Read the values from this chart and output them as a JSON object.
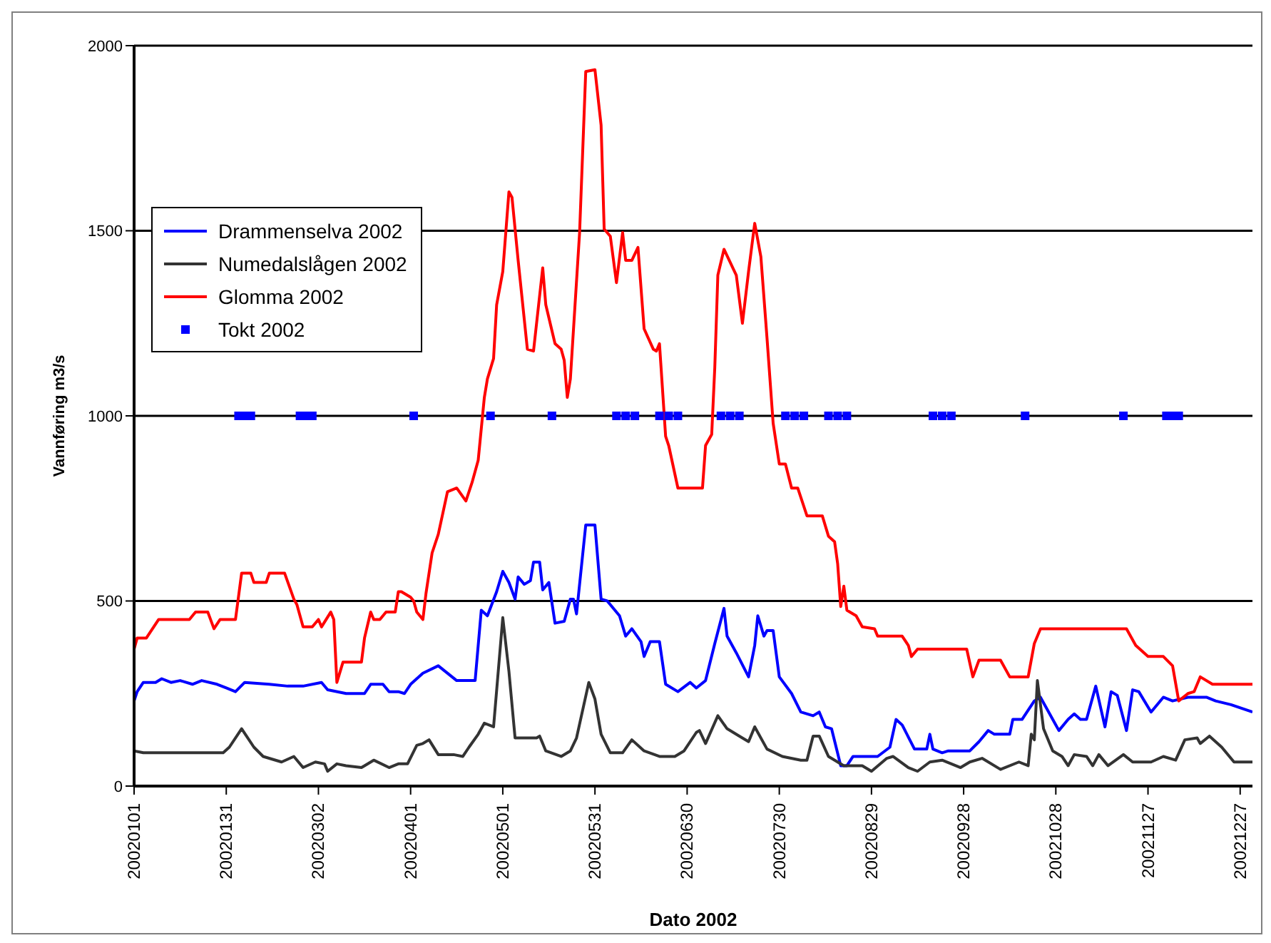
{
  "chart_data": {
    "type": "line",
    "xlabel": "Dato 2002",
    "ylabel": "Vannføring m3/s",
    "xlim": [
      "2002-01-01",
      "2002-12-31"
    ],
    "xticks": [
      {
        "value": "2002-01-01",
        "label": "20020101"
      },
      {
        "value": "2002-01-31",
        "label": "20020131"
      },
      {
        "value": "2002-03-02",
        "label": "20020302"
      },
      {
        "value": "2002-04-01",
        "label": "20020401"
      },
      {
        "value": "2002-05-01",
        "label": "20020501"
      },
      {
        "value": "2002-05-31",
        "label": "20020531"
      },
      {
        "value": "2002-06-30",
        "label": "20020630"
      },
      {
        "value": "2002-07-30",
        "label": "20020730"
      },
      {
        "value": "2002-08-29",
        "label": "20020829"
      },
      {
        "value": "2002-09-28",
        "label": "20020928"
      },
      {
        "value": "2002-10-28",
        "label": "20021028"
      },
      {
        "value": "2002-11-27",
        "label": "20021127"
      },
      {
        "value": "2002-12-27",
        "label": "20021227"
      }
    ],
    "ylim": [
      0,
      2000
    ],
    "yticks": [
      0,
      500,
      1000,
      1500,
      2000
    ],
    "grid": "y",
    "legend": "top left",
    "line_style": "solid",
    "marker": "none",
    "series": [
      {
        "name": "Drammenselva 2002",
        "color": "#0000ff",
        "x": [
          "2002-01-01",
          "2002-01-02",
          "2002-01-04",
          "2002-01-08",
          "2002-01-10",
          "2002-01-13",
          "2002-01-16",
          "2002-01-20",
          "2002-01-23",
          "2002-01-28",
          "2002-01-31",
          "2002-02-03",
          "2002-02-06",
          "2002-02-14",
          "2002-02-20",
          "2002-02-25",
          "2002-03-03",
          "2002-03-05",
          "2002-03-11",
          "2002-03-17",
          "2002-03-19",
          "2002-03-23",
          "2002-03-25",
          "2002-03-28",
          "2002-03-30",
          "2002-04-01",
          "2002-04-05",
          "2002-04-10",
          "2002-04-16",
          "2002-04-22",
          "2002-04-24",
          "2002-04-26",
          "2002-04-29",
          "2002-05-01",
          "2002-05-03",
          "2002-05-05",
          "2002-05-06",
          "2002-05-08",
          "2002-05-10",
          "2002-05-11",
          "2002-05-13",
          "2002-05-14",
          "2002-05-16",
          "2002-05-18",
          "2002-05-21",
          "2002-05-23",
          "2002-05-24",
          "2002-05-25",
          "2002-05-28",
          "2002-05-31",
          "2002-06-02",
          "2002-06-04",
          "2002-06-08",
          "2002-06-10",
          "2002-06-12",
          "2002-06-15",
          "2002-06-16",
          "2002-06-18",
          "2002-06-21",
          "2002-06-23",
          "2002-06-27",
          "2002-07-01",
          "2002-07-03",
          "2002-07-06",
          "2002-07-09",
          "2002-07-12",
          "2002-07-13",
          "2002-07-16",
          "2002-07-20",
          "2002-07-22",
          "2002-07-23",
          "2002-07-25",
          "2002-07-26",
          "2002-07-28",
          "2002-07-30",
          "2002-08-03",
          "2002-08-06",
          "2002-08-10",
          "2002-08-12",
          "2002-08-14",
          "2002-08-16",
          "2002-08-19",
          "2002-08-21",
          "2002-08-23",
          "2002-08-31",
          "2002-09-04",
          "2002-09-06",
          "2002-09-08",
          "2002-09-12",
          "2002-09-16",
          "2002-09-17",
          "2002-09-18",
          "2002-09-21",
          "2002-09-23",
          "2002-09-25",
          "2002-09-30",
          "2002-10-03",
          "2002-10-06",
          "2002-10-08",
          "2002-10-13",
          "2002-10-14",
          "2002-10-17",
          "2002-10-21",
          "2002-10-23",
          "2002-10-25",
          "2002-10-29",
          "2002-11-01",
          "2002-11-03",
          "2002-11-05",
          "2002-11-07",
          "2002-11-10",
          "2002-11-13",
          "2002-11-15",
          "2002-11-17",
          "2002-11-20",
          "2002-11-22",
          "2002-11-24",
          "2002-11-28",
          "2002-12-02",
          "2002-12-05",
          "2002-12-10",
          "2002-12-16",
          "2002-12-19",
          "2002-12-24",
          "2002-12-31"
        ],
        "values": [
          230,
          255,
          280,
          280,
          290,
          280,
          285,
          275,
          285,
          275,
          265,
          255,
          280,
          275,
          270,
          270,
          280,
          260,
          250,
          250,
          275,
          275,
          255,
          255,
          250,
          275,
          305,
          325,
          285,
          285,
          475,
          460,
          525,
          580,
          550,
          505,
          565,
          545,
          555,
          605,
          605,
          530,
          550,
          440,
          445,
          505,
          505,
          465,
          705,
          705,
          505,
          500,
          460,
          405,
          425,
          390,
          350,
          390,
          390,
          275,
          255,
          280,
          265,
          285,
          385,
          480,
          405,
          360,
          295,
          380,
          460,
          405,
          420,
          420,
          295,
          250,
          200,
          190,
          200,
          160,
          155,
          55,
          55,
          80,
          80,
          105,
          180,
          165,
          100,
          100,
          140,
          100,
          90,
          95,
          95,
          95,
          120,
          150,
          140,
          140,
          180,
          180,
          230,
          240,
          210,
          150,
          180,
          195,
          180,
          180,
          270,
          160,
          255,
          245,
          150,
          260,
          255,
          200,
          240,
          230,
          240,
          240,
          230,
          220,
          200
        ]
      },
      {
        "name": "Numedalslågen 2002",
        "color": "#333333",
        "x": [
          "2002-01-01",
          "2002-01-04",
          "2002-01-30",
          "2002-02-01",
          "2002-02-05",
          "2002-02-09",
          "2002-02-12",
          "2002-02-18",
          "2002-02-22",
          "2002-02-25",
          "2002-03-01",
          "2002-03-04",
          "2002-03-05",
          "2002-03-08",
          "2002-03-11",
          "2002-03-16",
          "2002-03-20",
          "2002-03-25",
          "2002-03-28",
          "2002-03-31",
          "2002-04-03",
          "2002-04-05",
          "2002-04-07",
          "2002-04-10",
          "2002-04-15",
          "2002-04-18",
          "2002-04-20",
          "2002-04-23",
          "2002-04-25",
          "2002-04-28",
          "2002-05-01",
          "2002-05-03",
          "2002-05-05",
          "2002-05-12",
          "2002-05-13",
          "2002-05-15",
          "2002-05-20",
          "2002-05-23",
          "2002-05-25",
          "2002-05-29",
          "2002-05-31",
          "2002-06-02",
          "2002-06-05",
          "2002-06-09",
          "2002-06-12",
          "2002-06-16",
          "2002-06-21",
          "2002-06-26",
          "2002-06-29",
          "2002-07-03",
          "2002-07-04",
          "2002-07-06",
          "2002-07-10",
          "2002-07-13",
          "2002-07-17",
          "2002-07-20",
          "2002-07-22",
          "2002-07-26",
          "2002-07-31",
          "2002-08-06",
          "2002-08-08",
          "2002-08-10",
          "2002-08-12",
          "2002-08-15",
          "2002-08-20",
          "2002-08-26",
          "2002-08-29",
          "2002-09-03",
          "2002-09-05",
          "2002-09-10",
          "2002-09-13",
          "2002-09-17",
          "2002-09-21",
          "2002-09-27",
          "2002-09-30",
          "2002-10-04",
          "2002-10-10",
          "2002-10-16",
          "2002-10-19",
          "2002-10-20",
          "2002-10-21",
          "2002-10-22",
          "2002-10-24",
          "2002-10-27",
          "2002-10-30",
          "2002-11-01",
          "2002-11-03",
          "2002-11-07",
          "2002-11-09",
          "2002-11-11",
          "2002-11-14",
          "2002-11-19",
          "2002-11-22",
          "2002-11-28",
          "2002-12-02",
          "2002-12-06",
          "2002-12-09",
          "2002-12-13",
          "2002-12-14",
          "2002-12-17",
          "2002-12-21",
          "2002-12-25",
          "2002-12-31"
        ],
        "values": [
          95,
          90,
          90,
          105,
          155,
          105,
          80,
          65,
          80,
          50,
          65,
          60,
          40,
          60,
          55,
          50,
          70,
          50,
          60,
          60,
          110,
          115,
          125,
          85,
          85,
          80,
          105,
          140,
          170,
          160,
          455,
          310,
          130,
          130,
          135,
          95,
          80,
          95,
          130,
          280,
          235,
          140,
          90,
          90,
          125,
          95,
          80,
          80,
          95,
          145,
          150,
          115,
          190,
          155,
          135,
          120,
          160,
          100,
          80,
          70,
          70,
          135,
          135,
          80,
          55,
          55,
          40,
          75,
          80,
          50,
          40,
          65,
          70,
          50,
          65,
          75,
          45,
          65,
          55,
          140,
          125,
          285,
          155,
          95,
          80,
          55,
          85,
          80,
          55,
          85,
          55,
          85,
          65,
          65,
          80,
          70,
          125,
          130,
          115,
          135,
          105,
          65,
          65
        ]
      },
      {
        "name": "Glomma 2002",
        "color": "#ff0000",
        "x": [
          "2002-01-01",
          "2002-01-02",
          "2002-01-05",
          "2002-01-09",
          "2002-01-19",
          "2002-01-21",
          "2002-01-25",
          "2002-01-27",
          "2002-01-29",
          "2002-02-03",
          "2002-02-05",
          "2002-02-08",
          "2002-02-09",
          "2002-02-13",
          "2002-02-14",
          "2002-02-19",
          "2002-02-22",
          "2002-02-23",
          "2002-02-25",
          "2002-02-28",
          "2002-03-02",
          "2002-03-03",
          "2002-03-06",
          "2002-03-07",
          "2002-03-08",
          "2002-03-10",
          "2002-03-16",
          "2002-03-17",
          "2002-03-19",
          "2002-03-20",
          "2002-03-22",
          "2002-03-24",
          "2002-03-27",
          "2002-03-28",
          "2002-03-29",
          "2002-04-01",
          "2002-04-02",
          "2002-04-03",
          "2002-04-05",
          "2002-04-06",
          "2002-04-08",
          "2002-04-10",
          "2002-04-13",
          "2002-04-16",
          "2002-04-19",
          "2002-04-21",
          "2002-04-23",
          "2002-04-25",
          "2002-04-26",
          "2002-04-28",
          "2002-04-29",
          "2002-05-01",
          "2002-05-03",
          "2002-05-04",
          "2002-05-06",
          "2002-05-09",
          "2002-05-11",
          "2002-05-14",
          "2002-05-15",
          "2002-05-18",
          "2002-05-20",
          "2002-05-21",
          "2002-05-22",
          "2002-05-23",
          "2002-05-26",
          "2002-05-28",
          "2002-05-31",
          "2002-06-02",
          "2002-06-03",
          "2002-06-05",
          "2002-06-07",
          "2002-06-09",
          "2002-06-10",
          "2002-06-12",
          "2002-06-14",
          "2002-06-16",
          "2002-06-19",
          "2002-06-20",
          "2002-06-21",
          "2002-06-23",
          "2002-06-24",
          "2002-06-27",
          "2002-07-05",
          "2002-07-06",
          "2002-07-08",
          "2002-07-09",
          "2002-07-10",
          "2002-07-12",
          "2002-07-16",
          "2002-07-18",
          "2002-07-20",
          "2002-07-22",
          "2002-07-24",
          "2002-07-26",
          "2002-07-28",
          "2002-07-30",
          "2002-08-01",
          "2002-08-03",
          "2002-08-05",
          "2002-08-08",
          "2002-08-13",
          "2002-08-15",
          "2002-08-17",
          "2002-08-18",
          "2002-08-19",
          "2002-08-20",
          "2002-08-21",
          "2002-08-24",
          "2002-08-26",
          "2002-08-30",
          "2002-08-31",
          "2002-09-08",
          "2002-09-10",
          "2002-09-11",
          "2002-09-13",
          "2002-09-29",
          "2002-10-01",
          "2002-10-03",
          "2002-10-10",
          "2002-10-13",
          "2002-10-19",
          "2002-10-21",
          "2002-10-23",
          "2002-11-20",
          "2002-11-23",
          "2002-11-27",
          "2002-12-02",
          "2002-12-05",
          "2002-12-07",
          "2002-12-10",
          "2002-12-12",
          "2002-12-14",
          "2002-12-18",
          "2002-12-31"
        ],
        "values": [
          370,
          400,
          400,
          450,
          450,
          470,
          470,
          425,
          450,
          450,
          575,
          575,
          550,
          550,
          575,
          575,
          505,
          490,
          430,
          430,
          450,
          430,
          470,
          450,
          280,
          335,
          335,
          400,
          470,
          450,
          450,
          470,
          470,
          525,
          525,
          510,
          500,
          470,
          450,
          520,
          630,
          680,
          795,
          805,
          770,
          820,
          880,
          1050,
          1100,
          1155,
          1300,
          1390,
          1605,
          1590,
          1420,
          1180,
          1175,
          1400,
          1300,
          1195,
          1180,
          1150,
          1050,
          1100,
          1495,
          1930,
          1935,
          1785,
          1505,
          1485,
          1360,
          1495,
          1420,
          1420,
          1455,
          1235,
          1180,
          1175,
          1195,
          945,
          920,
          805,
          805,
          920,
          950,
          1130,
          1380,
          1450,
          1380,
          1250,
          1390,
          1520,
          1430,
          1210,
          980,
          870,
          870,
          805,
          805,
          730,
          730,
          675,
          660,
          600,
          485,
          540,
          475,
          460,
          430,
          425,
          405,
          405,
          380,
          350,
          370,
          370,
          295,
          340,
          340,
          295,
          295,
          385,
          425,
          425,
          380,
          350,
          350,
          325,
          230,
          250,
          255,
          295,
          275,
          275
        ]
      },
      {
        "name": "Tokt 2002",
        "color": "#0000ff",
        "type": "scatter",
        "marker": "square",
        "x": [
          "2002-02-04",
          "2002-02-06",
          "2002-02-08",
          "2002-02-24",
          "2002-02-26",
          "2002-02-28",
          "2002-04-02",
          "2002-04-27",
          "2002-05-17",
          "2002-06-07",
          "2002-06-10",
          "2002-06-13",
          "2002-06-21",
          "2002-06-24",
          "2002-06-27",
          "2002-07-11",
          "2002-07-14",
          "2002-07-17",
          "2002-08-01",
          "2002-08-04",
          "2002-08-07",
          "2002-08-15",
          "2002-08-18",
          "2002-08-21",
          "2002-09-18",
          "2002-09-21",
          "2002-09-24",
          "2002-10-18",
          "2002-11-19",
          "2002-12-03",
          "2002-12-05",
          "2002-12-07"
        ],
        "values": [
          1000,
          1000,
          1000,
          1000,
          1000,
          1000,
          1000,
          1000,
          1000,
          1000,
          1000,
          1000,
          1000,
          1000,
          1000,
          1000,
          1000,
          1000,
          1000,
          1000,
          1000,
          1000,
          1000,
          1000,
          1000,
          1000,
          1000,
          1000,
          1000,
          1000,
          1000,
          1000
        ]
      }
    ]
  }
}
